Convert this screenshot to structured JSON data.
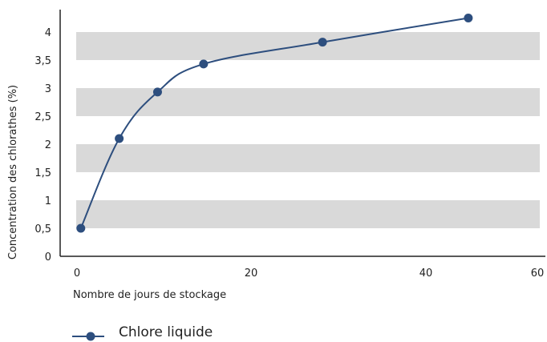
{
  "chart_data": {
    "type": "line",
    "xlabel": "Nombre de jours de stockage",
    "ylabel": "Concentration des chlorathes (%)",
    "xlim": [
      0,
      60
    ],
    "ylim": [
      0,
      4.3
    ],
    "x_ticks": [
      "0",
      "20",
      "40",
      "60"
    ],
    "y_ticks": [
      "0",
      "0,5",
      "1",
      "1,5",
      "2",
      "2,5",
      "3",
      "3,5",
      "4"
    ],
    "grid": "horizontal bands",
    "legend_position": "bottom-left",
    "series": [
      {
        "name": "Chlore liquide",
        "color": "#2d4e7e",
        "x": [
          0.5,
          5.5,
          10.5,
          16.5,
          32,
          51
        ],
        "y": [
          0.5,
          2.1,
          2.93,
          3.43,
          3.82,
          4.25
        ]
      }
    ]
  },
  "colors": {
    "band": "#d9d9d9",
    "axis": "#222222",
    "series": "#2d4e7e"
  }
}
